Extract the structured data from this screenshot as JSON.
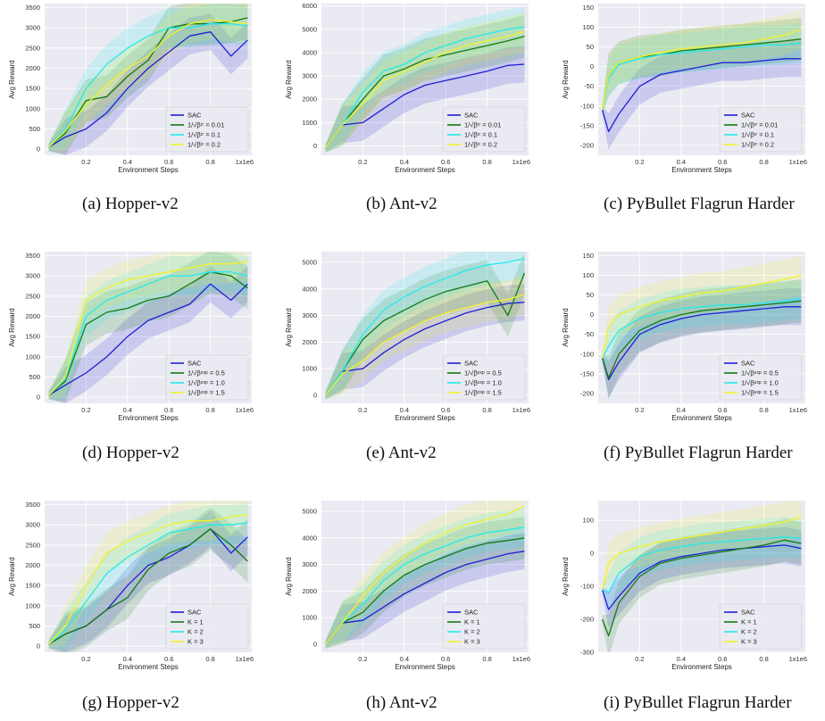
{
  "colors": {
    "SAC": "#1f1fd6",
    "s1": "#137a13",
    "s2": "#22eaee",
    "s3": "#f2f22a",
    "plot_bg": "#eaeaf2",
    "grid": "#ffffff"
  },
  "captions": [
    "(a)  Hopper-v2",
    "(b)  Ant-v2",
    "(c)  PyBullet Flagrun Harder",
    "(d)  Hopper-v2",
    "(e)  Ant-v2",
    "(f)  PyBullet Flagrun Harder",
    "(g)  Hopper-v2",
    "(h)  Ant-v2",
    "(i)  PyBullet Flagrun Harder"
  ],
  "chart_data": [
    {
      "type": "line",
      "xlabel": "Environment Steps",
      "ylabel": "Avg Reward",
      "x_offset_label": "1x1e6",
      "xlim": [
        0,
        1.0
      ],
      "ylim": [
        -150,
        3600
      ],
      "xticks": [
        0.2,
        0.4,
        0.6,
        0.8
      ],
      "yticks": [
        0,
        500,
        1000,
        1500,
        2000,
        2500,
        3000,
        3500
      ],
      "x": [
        0.02,
        0.1,
        0.2,
        0.3,
        0.4,
        0.5,
        0.6,
        0.7,
        0.8,
        0.9,
        0.98
      ],
      "series": [
        {
          "name": "SAC",
          "values": [
            50,
            300,
            500,
            900,
            1500,
            2000,
            2400,
            2800,
            2900,
            2300,
            2700
          ]
        },
        {
          "name": "1/√βᵗʳ = 0.01",
          "values": [
            50,
            400,
            1200,
            1300,
            1800,
            2200,
            3000,
            3100,
            3100,
            3150,
            3250
          ]
        },
        {
          "name": "1/√βᵗʳ = 0.1",
          "values": [
            50,
            500,
            1500,
            2100,
            2500,
            2800,
            3000,
            3000,
            3100,
            3100,
            3050
          ]
        },
        {
          "name": "1/√βᵗʳ = 0.2",
          "values": [
            50,
            450,
            1100,
            1600,
            2000,
            2300,
            2800,
            3100,
            3200,
            3150,
            3100
          ]
        }
      ]
    },
    {
      "type": "line",
      "xlabel": "Environment Steps",
      "ylabel": "Avg Reward",
      "x_offset_label": "1x1e6",
      "xlim": [
        0,
        1.0
      ],
      "ylim": [
        -400,
        6100
      ],
      "xticks": [
        0.2,
        0.4,
        0.6,
        0.8
      ],
      "yticks": [
        0,
        1000,
        2000,
        3000,
        4000,
        5000,
        6000
      ],
      "x": [
        0.02,
        0.1,
        0.2,
        0.3,
        0.4,
        0.5,
        0.6,
        0.7,
        0.8,
        0.9,
        0.98
      ],
      "series": [
        {
          "name": "SAC",
          "values": [
            -100,
            900,
            1000,
            1600,
            2200,
            2600,
            2800,
            3000,
            3200,
            3450,
            3500
          ]
        },
        {
          "name": "1/√βᵗʳ = 0.01",
          "values": [
            -100,
            900,
            2000,
            3000,
            3300,
            3700,
            3900,
            4100,
            4300,
            4500,
            4700
          ]
        },
        {
          "name": "1/√βᵗʳ = 0.1",
          "values": [
            -100,
            900,
            2300,
            3200,
            3500,
            4000,
            4300,
            4600,
            4800,
            5000,
            5100
          ]
        },
        {
          "name": "1/√βᵗʳ = 0.2",
          "values": [
            -100,
            900,
            1800,
            2800,
            3200,
            3600,
            4000,
            4300,
            4500,
            4700,
            4900
          ]
        }
      ]
    },
    {
      "type": "line",
      "xlabel": "Environment Steps",
      "ylabel": "Avg Reward",
      "x_offset_label": "1x1e6",
      "xlim": [
        0,
        1.0
      ],
      "ylim": [
        -225,
        160
      ],
      "xticks": [
        0.2,
        0.4,
        0.6,
        0.8
      ],
      "yticks": [
        -200,
        -150,
        -100,
        -50,
        0,
        50,
        100,
        150
      ],
      "x": [
        0.02,
        0.05,
        0.1,
        0.2,
        0.3,
        0.4,
        0.5,
        0.6,
        0.7,
        0.8,
        0.9,
        0.98
      ],
      "series": [
        {
          "name": "SAC",
          "values": [
            -110,
            -165,
            -120,
            -50,
            -20,
            -10,
            0,
            10,
            10,
            15,
            20,
            20
          ]
        },
        {
          "name": "1/√βᵗʳ = 0.01",
          "values": [
            -110,
            -20,
            10,
            25,
            30,
            40,
            45,
            50,
            55,
            60,
            65,
            70
          ]
        },
        {
          "name": "1/√βᵗʳ = 0.1",
          "values": [
            -110,
            -30,
            5,
            20,
            30,
            35,
            40,
            45,
            50,
            55,
            55,
            60
          ]
        },
        {
          "name": "1/√βᵗʳ = 0.2",
          "values": [
            -110,
            -20,
            10,
            25,
            35,
            45,
            50,
            55,
            60,
            70,
            80,
            95
          ]
        }
      ]
    },
    {
      "type": "line",
      "xlabel": "Environment Steps",
      "ylabel": "Avg Reward",
      "x_offset_label": "1x1e6",
      "xlim": [
        0,
        1.0
      ],
      "ylim": [
        -150,
        3600
      ],
      "xticks": [
        0.2,
        0.4,
        0.6,
        0.8
      ],
      "yticks": [
        0,
        500,
        1000,
        1500,
        2000,
        2500,
        3000,
        3500
      ],
      "x": [
        0.02,
        0.1,
        0.2,
        0.3,
        0.4,
        0.5,
        0.6,
        0.7,
        0.8,
        0.9,
        0.98
      ],
      "series": [
        {
          "name": "SAC",
          "values": [
            50,
            300,
            600,
            1000,
            1500,
            1900,
            2100,
            2300,
            2800,
            2400,
            2800
          ]
        },
        {
          "name": "1/√βᵉˣᵖ = 0.5",
          "values": [
            50,
            400,
            1800,
            2100,
            2200,
            2400,
            2500,
            2800,
            3100,
            3000,
            2700
          ]
        },
        {
          "name": "1/√βᵉˣᵖ = 1.0",
          "values": [
            50,
            450,
            2000,
            2400,
            2600,
            2800,
            3000,
            3000,
            3100,
            3100,
            3000
          ]
        },
        {
          "name": "1/√βᵉˣᵖ = 1.5",
          "values": [
            50,
            500,
            2400,
            2700,
            2900,
            3000,
            3100,
            3200,
            3300,
            3300,
            3350
          ]
        }
      ]
    },
    {
      "type": "line",
      "xlabel": "Environment Steps",
      "ylabel": "Avg Reward",
      "x_offset_label": "1x1e6",
      "xlim": [
        0,
        1.0
      ],
      "ylim": [
        -300,
        5400
      ],
      "xticks": [
        0.2,
        0.4,
        0.6,
        0.8
      ],
      "yticks": [
        0,
        1000,
        2000,
        3000,
        4000,
        5000
      ],
      "x": [
        0.02,
        0.1,
        0.2,
        0.3,
        0.4,
        0.5,
        0.6,
        0.7,
        0.8,
        0.9,
        0.98
      ],
      "series": [
        {
          "name": "SAC",
          "values": [
            0,
            900,
            1000,
            1600,
            2100,
            2500,
            2800,
            3100,
            3300,
            3450,
            3500
          ]
        },
        {
          "name": "1/√βᵉˣᵖ = 0.5",
          "values": [
            0,
            900,
            2100,
            2800,
            3200,
            3600,
            3900,
            4100,
            4300,
            3000,
            4600
          ]
        },
        {
          "name": "1/√βᵉˣᵖ = 1.0",
          "values": [
            0,
            900,
            2300,
            3200,
            3700,
            4100,
            4400,
            4700,
            4900,
            5000,
            5150
          ]
        },
        {
          "name": "1/√βᵉˣᵖ = 1.5",
          "values": [
            0,
            800,
            1300,
            2000,
            2400,
            2800,
            3100,
            3300,
            3500,
            3600,
            3800
          ]
        }
      ]
    },
    {
      "type": "line",
      "xlabel": "Environment Steps",
      "ylabel": "Avg Reward",
      "x_offset_label": "1x1e6",
      "xlim": [
        0,
        1.0
      ],
      "ylim": [
        -225,
        160
      ],
      "xticks": [
        0.2,
        0.4,
        0.6,
        0.8
      ],
      "yticks": [
        -200,
        -150,
        -100,
        -50,
        0,
        50,
        100,
        150
      ],
      "x": [
        0.02,
        0.05,
        0.1,
        0.2,
        0.3,
        0.4,
        0.5,
        0.6,
        0.7,
        0.8,
        0.9,
        0.98
      ],
      "series": [
        {
          "name": "SAC",
          "values": [
            -110,
            -165,
            -120,
            -50,
            -25,
            -10,
            0,
            5,
            10,
            15,
            20,
            20
          ]
        },
        {
          "name": "1/√βᵉˣᵖ = 0.5",
          "values": [
            -110,
            -160,
            -100,
            -40,
            -15,
            0,
            10,
            15,
            20,
            25,
            30,
            35
          ]
        },
        {
          "name": "1/√βᵉˣᵖ = 1.0",
          "values": [
            -110,
            -80,
            -40,
            -10,
            5,
            15,
            20,
            25,
            25,
            30,
            35,
            40
          ]
        },
        {
          "name": "1/√βᵉˣᵖ = 1.5",
          "values": [
            -110,
            -30,
            0,
            20,
            35,
            45,
            55,
            60,
            70,
            80,
            90,
            100
          ]
        }
      ]
    },
    {
      "type": "line",
      "xlabel": "Environment Steps",
      "ylabel": "Avg Reward",
      "x_offset_label": "1x1e6",
      "xlim": [
        0,
        1.0
      ],
      "ylim": [
        -150,
        3600
      ],
      "xticks": [
        0.2,
        0.4,
        0.6,
        0.8
      ],
      "yticks": [
        0,
        500,
        1000,
        1500,
        2000,
        2500,
        3000,
        3500
      ],
      "x": [
        0.02,
        0.1,
        0.2,
        0.3,
        0.4,
        0.5,
        0.6,
        0.7,
        0.8,
        0.9,
        0.98
      ],
      "series": [
        {
          "name": "SAC",
          "values": [
            50,
            300,
            500,
            900,
            1500,
            2000,
            2200,
            2500,
            2900,
            2300,
            2700
          ]
        },
        {
          "name": "K = 1",
          "values": [
            50,
            300,
            500,
            900,
            1200,
            1900,
            2300,
            2500,
            2900,
            2500,
            2100
          ]
        },
        {
          "name": "K = 2",
          "values": [
            50,
            400,
            1100,
            1800,
            2200,
            2500,
            2800,
            2900,
            3000,
            3000,
            3050
          ]
        },
        {
          "name": "K = 3",
          "values": [
            50,
            500,
            1500,
            2300,
            2600,
            2800,
            3000,
            3100,
            3100,
            3200,
            3250
          ]
        }
      ]
    },
    {
      "type": "line",
      "xlabel": "Environment Steps",
      "ylabel": "Avg Reward",
      "x_offset_label": "1x1e6",
      "xlim": [
        0,
        1.0
      ],
      "ylim": [
        -300,
        5400
      ],
      "xticks": [
        0.2,
        0.4,
        0.6,
        0.8
      ],
      "yticks": [
        0,
        1000,
        2000,
        3000,
        4000,
        5000
      ],
      "x": [
        0.02,
        0.1,
        0.2,
        0.3,
        0.4,
        0.5,
        0.6,
        0.7,
        0.8,
        0.9,
        0.98
      ],
      "series": [
        {
          "name": "SAC",
          "values": [
            0,
            800,
            900,
            1400,
            1900,
            2300,
            2700,
            3000,
            3200,
            3400,
            3500
          ]
        },
        {
          "name": "K = 1",
          "values": [
            0,
            800,
            1200,
            2000,
            2600,
            3000,
            3300,
            3600,
            3800,
            3900,
            4000
          ]
        },
        {
          "name": "K = 2",
          "values": [
            0,
            800,
            1500,
            2400,
            3000,
            3400,
            3700,
            4000,
            4200,
            4300,
            4400
          ]
        },
        {
          "name": "K = 3",
          "values": [
            0,
            800,
            1800,
            2700,
            3300,
            3800,
            4200,
            4500,
            4700,
            4900,
            5200
          ]
        }
      ]
    },
    {
      "type": "line",
      "xlabel": "Environment Steps",
      "ylabel": "Avg Reward",
      "x_offset_label": "1x1e6",
      "xlim": [
        0,
        1.0
      ],
      "ylim": [
        -300,
        160
      ],
      "xticks": [
        0.2,
        0.4,
        0.6,
        0.8
      ],
      "yticks": [
        -300,
        -200,
        -100,
        0,
        100
      ],
      "x": [
        0.02,
        0.05,
        0.1,
        0.2,
        0.3,
        0.4,
        0.5,
        0.6,
        0.7,
        0.8,
        0.9,
        0.98
      ],
      "series": [
        {
          "name": "SAC",
          "values": [
            -110,
            -170,
            -130,
            -60,
            -25,
            -10,
            0,
            10,
            15,
            20,
            25,
            15
          ]
        },
        {
          "name": "K = 1",
          "values": [
            -200,
            -250,
            -150,
            -70,
            -30,
            -15,
            -5,
            5,
            15,
            25,
            40,
            30
          ]
        },
        {
          "name": "K = 2",
          "values": [
            -110,
            -120,
            -60,
            -10,
            10,
            20,
            30,
            35,
            40,
            45,
            50,
            45
          ]
        },
        {
          "name": "K = 3",
          "values": [
            -110,
            -30,
            0,
            20,
            35,
            45,
            55,
            65,
            75,
            85,
            95,
            110
          ]
        }
      ]
    }
  ]
}
